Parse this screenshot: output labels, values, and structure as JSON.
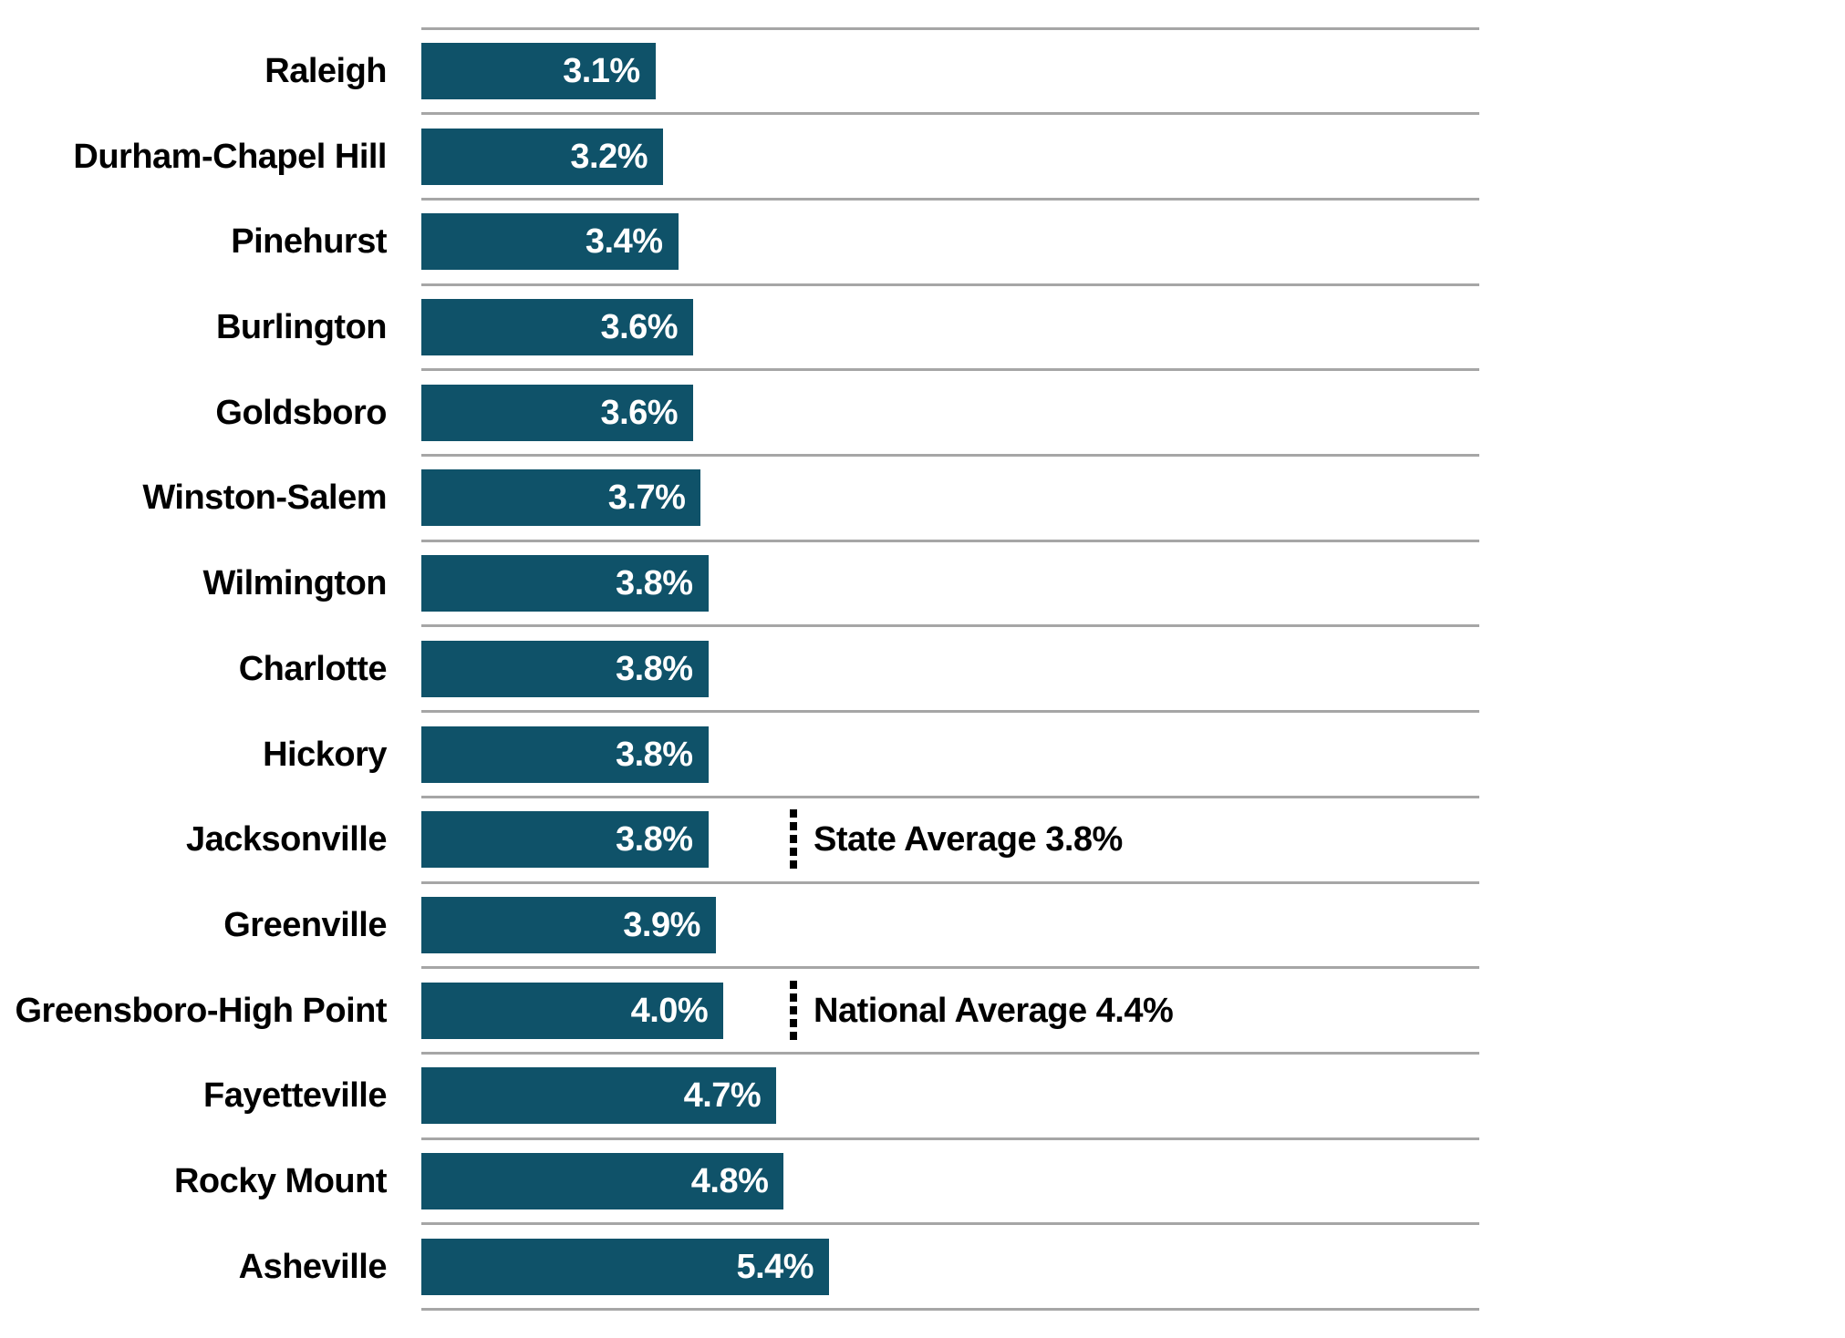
{
  "chart_data": {
    "type": "bar",
    "orientation": "horizontal",
    "title": "",
    "xlabel": "",
    "ylabel": "",
    "grid": "horizontal row separator lines, no axis ticks or tick labels",
    "legend_position": "none",
    "xlim": [
      0,
      14
    ],
    "categories": [
      "Raleigh",
      "Durham-Chapel Hill",
      "Pinehurst",
      "Burlington",
      "Goldsboro",
      "Winston-Salem",
      "Wilmington",
      "Charlotte",
      "Hickory",
      "Jacksonville",
      "Greenville",
      "Greensboro-High Point",
      "Fayetteville",
      "Rocky Mount",
      "Asheville"
    ],
    "values": [
      3.1,
      3.2,
      3.4,
      3.6,
      3.6,
      3.7,
      3.8,
      3.8,
      3.8,
      3.8,
      3.9,
      4.0,
      4.7,
      4.8,
      5.4
    ],
    "value_labels": [
      "3.1%",
      "3.2%",
      "3.4%",
      "3.6%",
      "3.6%",
      "3.7%",
      "3.8%",
      "3.8%",
      "3.8%",
      "3.8%",
      "3.9%",
      "4.0%",
      "4.7%",
      "4.8%",
      "5.4%"
    ],
    "annotations": [
      {
        "id": "state-average",
        "label": "State Average 3.8%",
        "value": 3.8,
        "row": "Jacksonville",
        "row_index": 9
      },
      {
        "id": "national-average",
        "label": "National Average 4.4%",
        "value": 4.4,
        "row": "Greensboro-High Point",
        "row_index": 11
      }
    ],
    "bar_color": "#0F5269",
    "gridline_color": "#A6A6A6",
    "value_text_color": "#FFFFFF",
    "label_text_color": "#000000",
    "annotation_marker_color": "#000000"
  }
}
